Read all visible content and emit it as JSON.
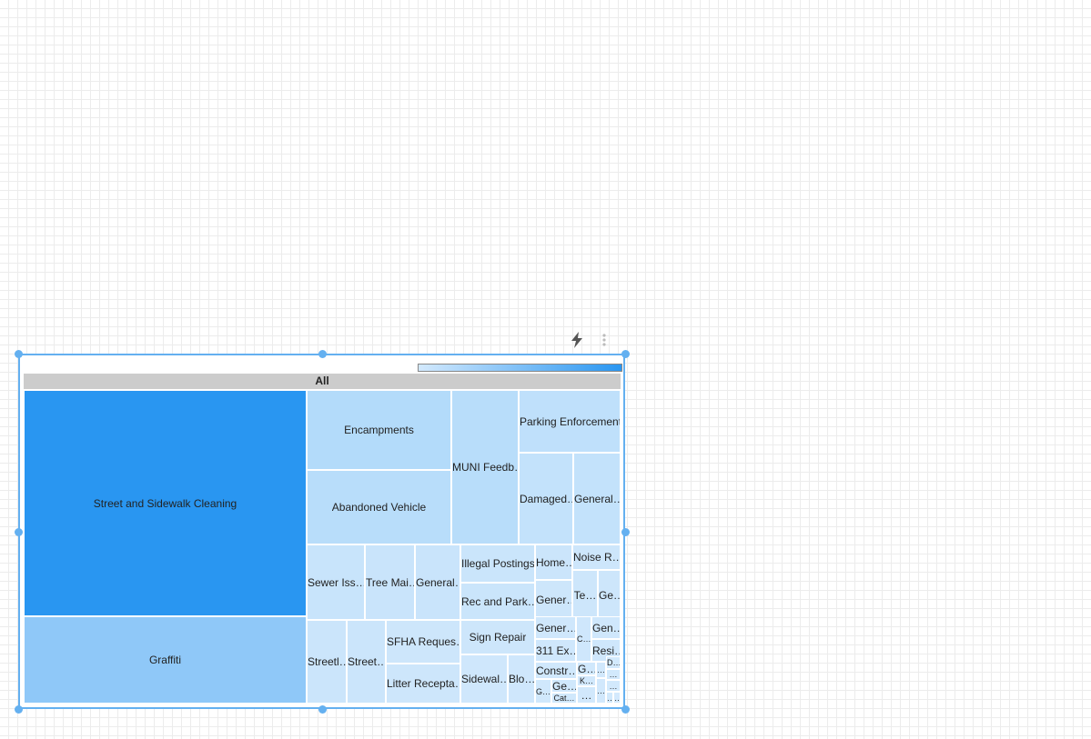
{
  "toolbar": {
    "bolt_icon": "lightning-bolt-icon",
    "menu_icon": "more-vert-icon"
  },
  "treemap": {
    "root_label": "All",
    "color_scale": {
      "low": "#d3e9fd",
      "high": "#2996f1"
    },
    "cells": [
      {
        "label": "Street and Sidewalk Cleaning",
        "color": "#2996f1"
      },
      {
        "label": "Graffiti",
        "color": "#8fc8f8"
      },
      {
        "label": "Encampments",
        "color": "#b3dbfa"
      },
      {
        "label": "Abandoned Vehicle",
        "color": "#b8ddfa"
      },
      {
        "label": "MUNI Feedb…",
        "color": "#b8ddfa"
      },
      {
        "label": "Parking Enforcement",
        "color": "#bfe0fb"
      },
      {
        "label": "Damaged…",
        "color": "#c3e2fb"
      },
      {
        "label": "General…",
        "color": "#c3e2fb"
      },
      {
        "label": "Sewer Iss…",
        "color": "#c8e4fb"
      },
      {
        "label": "Tree Mai…",
        "color": "#c9e4fb"
      },
      {
        "label": "General…",
        "color": "#c9e4fb"
      },
      {
        "label": "Illegal Postings",
        "color": "#cae5fb"
      },
      {
        "label": "Rec and Park…",
        "color": "#cae5fb"
      },
      {
        "label": "Home…",
        "color": "#cbe5fb"
      },
      {
        "label": "Noise R…",
        "color": "#cde6fb"
      },
      {
        "label": "Gener…",
        "color": "#cde6fb"
      },
      {
        "label": "Te…",
        "color": "#cde6fb"
      },
      {
        "label": "Ge…",
        "color": "#cde6fb"
      },
      {
        "label": "Streetl…",
        "color": "#cbe5fb"
      },
      {
        "label": "Street…",
        "color": "#cbe5fb"
      },
      {
        "label": "SFHA Reques…",
        "color": "#cde6fb"
      },
      {
        "label": "Litter Recepta…",
        "color": "#cde6fb"
      },
      {
        "label": "Sign Repair",
        "color": "#cde6fb"
      },
      {
        "label": "Sidewal…",
        "color": "#cfe7fc"
      },
      {
        "label": "Blo…",
        "color": "#cfe7fc"
      },
      {
        "label": "Gener…",
        "color": "#cfe7fc"
      },
      {
        "label": "311 Ex…",
        "color": "#cfe7fc"
      },
      {
        "label": "C…",
        "color": "#cfe7fc"
      },
      {
        "label": "Gen…",
        "color": "#cfe7fc"
      },
      {
        "label": "Resi…",
        "color": "#cfe7fc"
      },
      {
        "label": "Constr…",
        "color": "#d0e8fc"
      },
      {
        "label": "G…",
        "color": "#d0e8fc"
      },
      {
        "label": "Ge…",
        "color": "#d0e8fc"
      },
      {
        "label": "Cat…",
        "color": "#d0e8fc"
      },
      {
        "label": "G…",
        "color": "#d0e8fc"
      },
      {
        "label": "K…",
        "color": "#d1e8fc"
      },
      {
        "label": "…",
        "color": "#d1e8fc"
      },
      {
        "label": "…",
        "color": "#d1e8fc"
      },
      {
        "label": "…",
        "color": "#d1e8fc"
      },
      {
        "label": "D…",
        "color": "#d2e9fc"
      },
      {
        "label": "…",
        "color": "#d2e9fc"
      },
      {
        "label": "…",
        "color": "#d2e9fc"
      },
      {
        "label": "…",
        "color": "#d2e9fc"
      },
      {
        "label": "…",
        "color": "#d3e9fd"
      }
    ]
  }
}
